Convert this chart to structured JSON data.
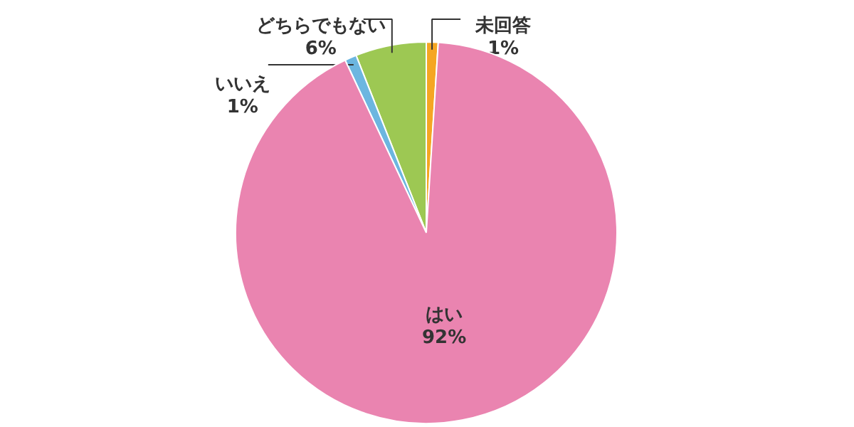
{
  "chart_data": {
    "type": "pie",
    "categories": [
      "未回答",
      "はい",
      "いいえ",
      "どちらでもない"
    ],
    "values": [
      1,
      92,
      1,
      6
    ],
    "value_labels": [
      "1%",
      "92%",
      "1%",
      "6%"
    ],
    "colors": [
      "#f5a623",
      "#ea84b0",
      "#6cb6e0",
      "#9dc853"
    ]
  }
}
